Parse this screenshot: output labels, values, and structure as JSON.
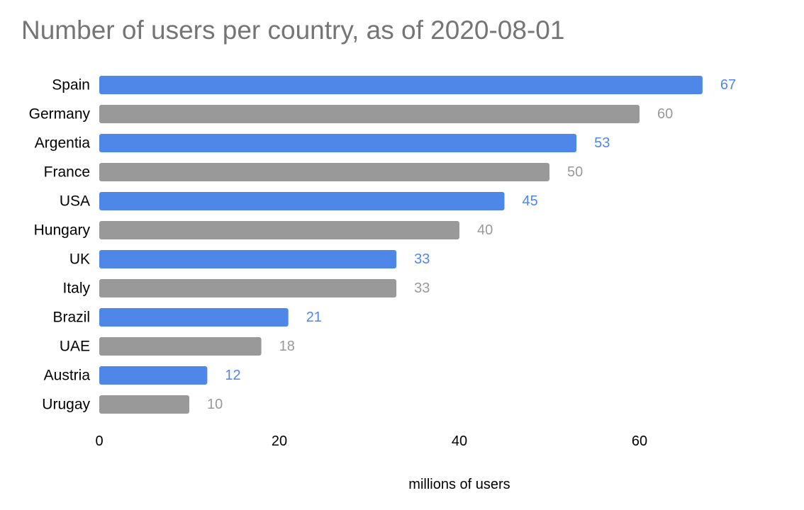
{
  "chart_data": {
    "type": "bar",
    "orientation": "horizontal",
    "title": "Number of users per country, as of 2020-08-01",
    "xlabel": "millions of users",
    "ylabel": "",
    "categories": [
      "Spain",
      "Germany",
      "Argentia",
      "France",
      "USA",
      "Hungary",
      "UK",
      "Italy",
      "Brazil",
      "UAE",
      "Austria",
      "Urugay"
    ],
    "values": [
      67,
      60,
      53,
      50,
      45,
      40,
      33,
      33,
      21,
      18,
      12,
      10
    ],
    "xlim": [
      0,
      70
    ],
    "xticks": [
      0,
      20,
      40,
      60
    ],
    "grid": false,
    "legend": "none",
    "colors": {
      "blue": "#4f87e8",
      "gray": "#999999"
    },
    "bar_colors": [
      "blue",
      "gray",
      "blue",
      "gray",
      "blue",
      "gray",
      "blue",
      "gray",
      "blue",
      "gray",
      "blue",
      "gray"
    ]
  }
}
